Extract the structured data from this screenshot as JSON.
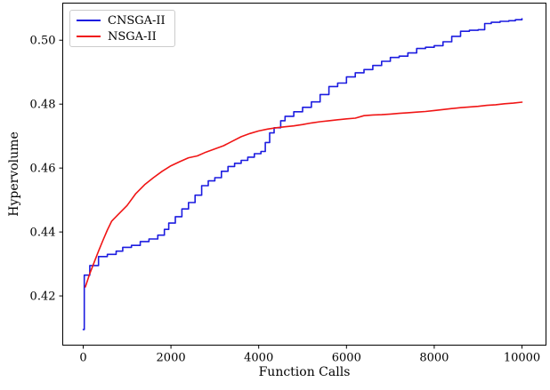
{
  "chart_data": {
    "type": "line",
    "title": "",
    "xlabel": "Function Calls",
    "ylabel": "Hypervolume",
    "xlim": [
      -466,
      10547
    ],
    "ylim": [
      0.4046,
      0.5116
    ],
    "x_ticks": [
      0,
      2000,
      4000,
      6000,
      8000,
      10000
    ],
    "y_ticks": [
      0.42,
      0.44,
      0.46,
      0.48,
      0.5
    ],
    "grid": false,
    "legend_position": "upper-left",
    "frame_color": "#000000",
    "series": [
      {
        "name": "CNSGA-II",
        "color": "#1c1ce0",
        "interpolation": "step",
        "x": [
          0,
          25,
          150,
          350,
          550,
          750,
          900,
          1100,
          1300,
          1500,
          1700,
          1850,
          1950,
          2100,
          2250,
          2400,
          2550,
          2700,
          2850,
          3000,
          3150,
          3300,
          3450,
          3600,
          3750,
          3900,
          4050,
          4150,
          4250,
          4350,
          4500,
          4600,
          4800,
          5000,
          5200,
          5400,
          5600,
          5800,
          6000,
          6200,
          6400,
          6600,
          6800,
          7000,
          7200,
          7400,
          7600,
          7800,
          8000,
          8200,
          8400,
          8600,
          8800,
          9000,
          9150,
          9300,
          9500,
          9700,
          9850,
          10000
        ],
        "y": [
          0.4095,
          0.4265,
          0.4295,
          0.4323,
          0.433,
          0.434,
          0.4352,
          0.4358,
          0.437,
          0.4378,
          0.439,
          0.4408,
          0.4428,
          0.4448,
          0.4472,
          0.4492,
          0.4515,
          0.4545,
          0.456,
          0.457,
          0.459,
          0.4605,
          0.4615,
          0.4624,
          0.4634,
          0.4645,
          0.4652,
          0.468,
          0.471,
          0.4726,
          0.4748,
          0.4762,
          0.4776,
          0.479,
          0.4807,
          0.483,
          0.4855,
          0.4866,
          0.4885,
          0.4898,
          0.4908,
          0.4921,
          0.4934,
          0.4946,
          0.495,
          0.496,
          0.4974,
          0.4978,
          0.4983,
          0.4995,
          0.5012,
          0.5028,
          0.5031,
          0.5033,
          0.5052,
          0.5056,
          0.5059,
          0.5061,
          0.5064,
          0.5067
        ]
      },
      {
        "name": "NSGA-II",
        "color": "#f01515",
        "interpolation": "linear",
        "x": [
          50,
          150,
          250,
          350,
          450,
          550,
          650,
          800,
          1000,
          1200,
          1400,
          1600,
          1800,
          2000,
          2200,
          2400,
          2600,
          2800,
          3000,
          3200,
          3400,
          3600,
          3800,
          4000,
          4200,
          4400,
          4600,
          4800,
          5000,
          5200,
          5400,
          5600,
          5800,
          6000,
          6200,
          6400,
          6600,
          6800,
          7000,
          7200,
          7400,
          7600,
          7800,
          8000,
          8200,
          8400,
          8600,
          8800,
          9000,
          9200,
          9400,
          9600,
          9800,
          10000
        ],
        "y": [
          0.4228,
          0.427,
          0.4305,
          0.434,
          0.4374,
          0.4406,
          0.4434,
          0.4455,
          0.4483,
          0.452,
          0.4548,
          0.457,
          0.459,
          0.4607,
          0.462,
          0.4632,
          0.4638,
          0.465,
          0.466,
          0.467,
          0.4684,
          0.4698,
          0.4708,
          0.4716,
          0.4722,
          0.4726,
          0.4729,
          0.4732,
          0.4736,
          0.4741,
          0.4745,
          0.4748,
          0.4751,
          0.4754,
          0.4756,
          0.4764,
          0.4766,
          0.4767,
          0.4769,
          0.4771,
          0.4773,
          0.4775,
          0.4777,
          0.478,
          0.4783,
          0.4786,
          0.4789,
          0.4791,
          0.4793,
          0.4796,
          0.4798,
          0.4801,
          0.4803,
          0.4806
        ]
      }
    ]
  }
}
